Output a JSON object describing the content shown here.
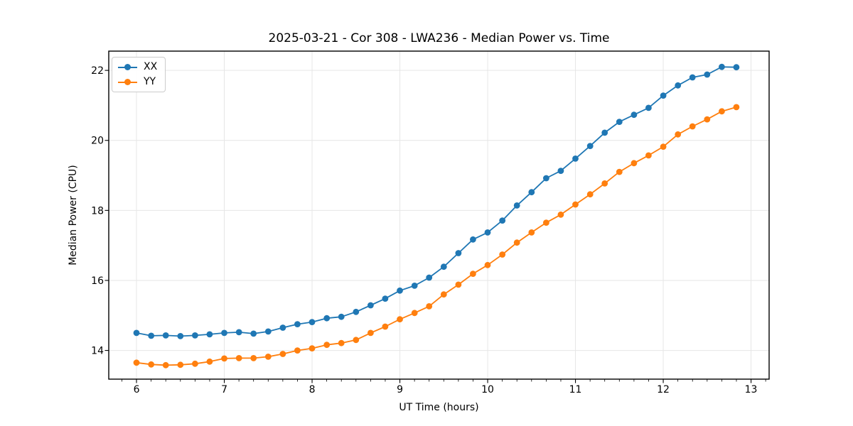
{
  "figure": {
    "background": "#ffffff",
    "text_color": "#000000",
    "grid_color": "#e6e6e6",
    "spine_color": "#000000"
  },
  "chart_data": {
    "type": "line",
    "title": "2025-03-21 - Cor 308 - LWA236 - Median Power vs. Time",
    "xlabel": "UT Time (hours)",
    "ylabel": "Median Power (CPU)",
    "xlim": [
      5.684,
      13.206
    ],
    "ylim": [
      13.18,
      22.55
    ],
    "xticks": [
      6,
      7,
      8,
      9,
      10,
      11,
      12,
      13
    ],
    "yticks": [
      14,
      16,
      18,
      20,
      22
    ],
    "minor_tick_interval_x": 0.1667,
    "grid": true,
    "legend_position": "upper left",
    "x": [
      6.0,
      6.167,
      6.333,
      6.5,
      6.667,
      6.833,
      7.0,
      7.167,
      7.333,
      7.5,
      7.667,
      7.833,
      8.0,
      8.167,
      8.333,
      8.5,
      8.667,
      8.833,
      9.0,
      9.167,
      9.333,
      9.5,
      9.667,
      9.833,
      10.0,
      10.167,
      10.333,
      10.5,
      10.667,
      10.833,
      11.0,
      11.167,
      11.333,
      11.5,
      11.667,
      11.833,
      12.0,
      12.167,
      12.333,
      12.5,
      12.667,
      12.833
    ],
    "series": [
      {
        "name": "XX",
        "color": "#1f77b4",
        "marker": "circle",
        "values": [
          14.5,
          14.42,
          14.43,
          14.41,
          14.43,
          14.46,
          14.5,
          14.52,
          14.48,
          14.54,
          14.65,
          14.75,
          14.81,
          14.92,
          14.96,
          15.1,
          15.29,
          15.48,
          15.71,
          15.85,
          16.08,
          16.39,
          16.78,
          17.17,
          17.37,
          17.71,
          18.14,
          18.52,
          18.92,
          19.13,
          19.48,
          19.84,
          20.22,
          20.53,
          20.73,
          20.93,
          21.28,
          21.57,
          21.8,
          21.88,
          22.1,
          22.09
        ]
      },
      {
        "name": "YY",
        "color": "#ff7f0e",
        "marker": "circle",
        "values": [
          13.65,
          13.6,
          13.58,
          13.59,
          13.62,
          13.68,
          13.77,
          13.78,
          13.78,
          13.82,
          13.9,
          14.0,
          14.06,
          14.16,
          14.21,
          14.3,
          14.5,
          14.68,
          14.89,
          15.07,
          15.26,
          15.6,
          15.88,
          16.19,
          16.44,
          16.74,
          17.08,
          17.37,
          17.65,
          17.88,
          18.17,
          18.46,
          18.77,
          19.1,
          19.35,
          19.57,
          19.82,
          20.17,
          20.4,
          20.6,
          20.83,
          20.95
        ]
      }
    ]
  }
}
